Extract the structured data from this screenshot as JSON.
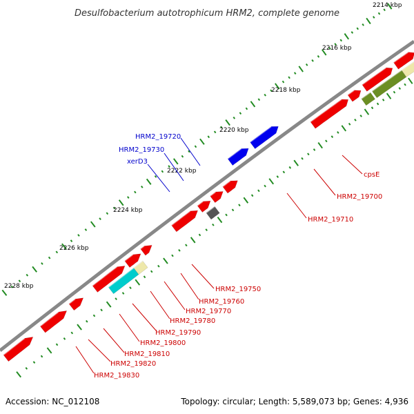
{
  "title": "Desulfobacterium autotrophicum HRM2, complete genome",
  "ticks": [
    {
      "label": "2214 kbp"
    },
    {
      "label": "2216 kbp"
    },
    {
      "label": "2218 kbp"
    },
    {
      "label": "2220 kbp"
    },
    {
      "label": "2222 kbp"
    },
    {
      "label": "2224 kbp"
    },
    {
      "label": "2226 kbp"
    },
    {
      "label": "2228 kbp"
    }
  ],
  "gene_labels": [
    {
      "text": "cpsE",
      "color": "#cc0000"
    },
    {
      "text": "HRM2_19700",
      "color": "#cc0000"
    },
    {
      "text": "HRM2_19710",
      "color": "#cc0000"
    },
    {
      "text": "HRM2_19720",
      "color": "#0000cc"
    },
    {
      "text": "HRM2_19730",
      "color": "#0000cc"
    },
    {
      "text": "xerD3",
      "color": "#0000cc"
    },
    {
      "text": "HRM2_19750",
      "color": "#cc0000"
    },
    {
      "text": "HRM2_19760",
      "color": "#cc0000"
    },
    {
      "text": "HRM2_19770",
      "color": "#cc0000"
    },
    {
      "text": "HRM2_19780",
      "color": "#cc0000"
    },
    {
      "text": "HRM2_19790",
      "color": "#cc0000"
    },
    {
      "text": "HRM2_19800",
      "color": "#cc0000"
    },
    {
      "text": "HRM2_19810",
      "color": "#cc0000"
    },
    {
      "text": "HRM2_19820",
      "color": "#cc0000"
    },
    {
      "text": "HRM2_19830",
      "color": "#cc0000"
    }
  ],
  "colors": {
    "cds": "#ee0000",
    "trna": "#0000ee",
    "rrna_gc": "#6b8e23",
    "misc": "#00cccc",
    "other": "#555555",
    "light": "#eee8aa",
    "backbone": "#888888",
    "tick": "#228b22"
  },
  "footer": {
    "accession": "Accession: NC_012108",
    "info": "Topology: circular; Length: 5,589,073 bp; Genes: 4,936"
  }
}
